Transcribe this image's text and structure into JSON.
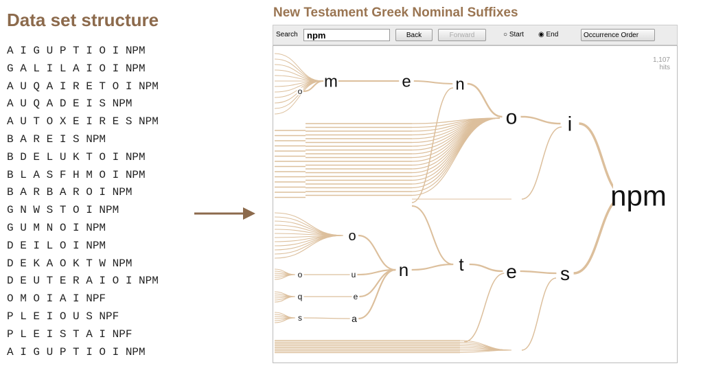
{
  "left": {
    "title": "Data set structure",
    "lines": [
      "A I G U P T I O I NPM",
      "G A L I L A I O I NPM",
      "A U Q A I R E T O I NPM",
      "A U Q A D E I S NPM",
      "A U T O X E I R E S NPM",
      "B A R E I S NPM",
      "B D E L U K T O I NPM",
      "B L A S F H M O I NPM",
      "B A R B A R O I NPM",
      "G N W S T O I NPM",
      "G U M N O I NPM",
      "D E I L O I NPM",
      "D E K A O K T W NPM",
      "D E U T E R A I O I NPM",
      "O M O I A I NPF",
      "P L E I O U S NPF",
      "P L E I S T A I NPF",
      "A I G U P T I O I NPM"
    ]
  },
  "app": {
    "title": "New Testament Greek Nominal Suffixes",
    "toolbar": {
      "search_label": "Search",
      "search_value": "npm",
      "back": "Back",
      "forward": "Forward",
      "start": "Start",
      "end": "End",
      "order": "Occurrence Order"
    },
    "hits": {
      "count": "1,107",
      "label": "hits"
    },
    "tree": {
      "nodes": [
        {
          "label": "m"
        },
        {
          "label": "e"
        },
        {
          "label": "n"
        },
        {
          "label": "o"
        },
        {
          "label": "i"
        },
        {
          "label": "npm"
        },
        {
          "label": "o"
        },
        {
          "label": "n"
        },
        {
          "label": "t"
        },
        {
          "label": "e"
        },
        {
          "label": "s"
        },
        {
          "label": "o"
        },
        {
          "label": "u"
        },
        {
          "label": "q"
        },
        {
          "label": "a"
        },
        {
          "label": "s"
        },
        {
          "label": "o"
        },
        {
          "label": "e"
        }
      ]
    }
  }
}
